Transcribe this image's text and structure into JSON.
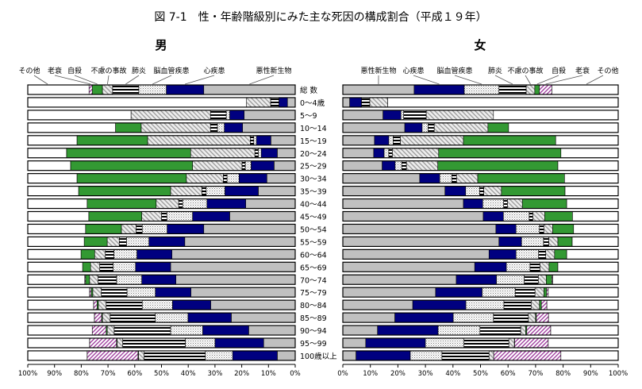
{
  "title": "図 7-1　性・年齢階級別にみた主な死因の構成割合（平成１９年）",
  "colors": {
    "悪性新生物": "#c0c0c0",
    "心疾患": "#000080",
    "脳血管疾患": "dots",
    "肺炎": "horizontal-stripes",
    "不慮の事故": "gray-diagonal-hatch",
    "自殺": "#339933",
    "老衰": "#993399",
    "その他": "#ffffff"
  },
  "chart_data": [
    {
      "type": "bar",
      "stacked": true,
      "orientation": "horizontal",
      "title": "男",
      "xlim": [
        100,
        0
      ],
      "xlabel": "",
      "tick_labels": [
        "100%",
        "90%",
        "80%",
        "70%",
        "60%",
        "50%",
        "40%",
        "30%",
        "20%",
        "10%",
        "0%"
      ],
      "legend": [
        "その他",
        "老衰",
        "自殺",
        "不慮の事故",
        "肺炎",
        "脳血管疾患",
        "心疾患",
        "悪性新生物"
      ],
      "categories": [
        "総 数",
        "0～4歳",
        "5～9",
        "10～14",
        "15～19",
        "20～24",
        "25～29",
        "30～34",
        "35～39",
        "40～44",
        "45～49",
        "50～54",
        "55～59",
        "60～64",
        "65～69",
        "70～74",
        "75～79",
        "80～84",
        "85～89",
        "90～94",
        "95～99",
        "100歳以上"
      ],
      "series": [
        {
          "name": "悪性新生物",
          "values": [
            34.2,
            2.9,
            19.1,
            19.7,
            9.1,
            6.7,
            7.9,
            10.6,
            13.8,
            18.5,
            24.5,
            34.2,
            41.3,
            46.1,
            46.6,
            44.6,
            39.0,
            31.6,
            23.9,
            17.4,
            11.8,
            6.7
          ]
        },
        {
          "name": "心疾患",
          "values": [
            14.0,
            3.2,
            5.4,
            6.8,
            5.4,
            6.0,
            8.6,
            10.4,
            12.5,
            14.5,
            13.9,
            13.7,
            13.4,
            13.1,
            13.1,
            12.8,
            13.3,
            14.3,
            16.2,
            17.2,
            18.2,
            16.7
          ]
        },
        {
          "name": "脳血管疾患",
          "values": [
            10.3,
            0,
            1.3,
            2.6,
            1.0,
            1.1,
            2.2,
            4.5,
            7.0,
            9.1,
            9.6,
            9.3,
            8.4,
            8.6,
            8.4,
            9.4,
            10.6,
            11.3,
            12.2,
            12.0,
            11.1,
            10.2
          ]
        },
        {
          "name": "肺炎",
          "values": [
            9.8,
            3.1,
            5.9,
            2.6,
            1.3,
            1.3,
            1.2,
            1.4,
            1.6,
            1.5,
            2.0,
            2.3,
            2.7,
            3.2,
            5.0,
            6.9,
            9.6,
            13.5,
            16.9,
            21.1,
            23.4,
            22.9
          ]
        },
        {
          "name": "不慮の事故",
          "values": [
            3.8,
            9.0,
            29.7,
            25.9,
            38.4,
            24.0,
            18.5,
            13.8,
            11.7,
            8.4,
            7.4,
            5.5,
            4.5,
            4.0,
            3.4,
            3.2,
            3.2,
            2.9,
            2.9,
            2.6,
            2.1,
            2.1
          ]
        },
        {
          "name": "自殺",
          "values": [
            3.8,
            0,
            0,
            9.6,
            26.4,
            46.4,
            45.6,
            40.9,
            34.4,
            25.8,
            19.8,
            13.4,
            8.6,
            5.1,
            3.0,
            1.5,
            0.6,
            0.5,
            0.3,
            0.4,
            0.2,
            0.2
          ]
        },
        {
          "name": "老衰",
          "values": [
            1.2,
            0,
            0,
            0,
            0,
            0,
            0,
            0,
            0,
            0,
            0,
            0,
            0,
            0,
            0,
            0.3,
            0.6,
            1.3,
            2.7,
            5.2,
            10.1,
            19.0
          ]
        },
        {
          "name": "その他",
          "values": [
            22.9,
            81.8,
            38.6,
            32.8,
            18.4,
            14.5,
            16.0,
            18.4,
            19.0,
            22.2,
            22.8,
            21.6,
            21.1,
            19.9,
            20.5,
            21.3,
            23.1,
            24.6,
            24.9,
            24.1,
            23.1,
            22.2
          ]
        }
      ]
    },
    {
      "type": "bar",
      "stacked": true,
      "orientation": "horizontal",
      "title": "女",
      "xlim": [
        0,
        100
      ],
      "xlabel": "",
      "tick_labels": [
        "0%",
        "10%",
        "20%",
        "30%",
        "40%",
        "50%",
        "60%",
        "70%",
        "80%",
        "90%",
        "100%"
      ],
      "legend": [
        "悪性新生物",
        "心疾患",
        "脳血管疾患",
        "肺炎",
        "不慮の事故",
        "自殺",
        "老衰",
        "その他"
      ],
      "categories": [
        "総 数",
        "0～4歳",
        "5～9",
        "10～14",
        "15～19",
        "20～24",
        "25～29",
        "30～34",
        "35～39",
        "40～44",
        "45～49",
        "50～54",
        "55～59",
        "60～64",
        "65～69",
        "70～74",
        "75～79",
        "80～84",
        "85～89",
        "90～94",
        "95～99",
        "100歳以上"
      ],
      "series": [
        {
          "name": "悪性新生物",
          "values": [
            25.9,
            2.5,
            14.6,
            22.5,
            11.5,
            11.2,
            14.3,
            27.9,
            37.1,
            43.8,
            51.0,
            55.6,
            56.7,
            53.1,
            47.9,
            41.2,
            33.7,
            25.4,
            18.9,
            12.6,
            8.3,
            4.8
          ]
        },
        {
          "name": "心疾患",
          "values": [
            18.2,
            4.3,
            6.5,
            6.3,
            5.2,
            3.8,
            4.7,
            7.3,
            7.5,
            7.0,
            7.3,
            7.3,
            8.2,
            9.8,
            11.5,
            14.6,
            16.9,
            19.3,
            21.2,
            22.0,
            21.7,
            19.7
          ]
        },
        {
          "name": "脳血管疾患",
          "values": [
            12.6,
            0,
            1.0,
            2.2,
            1.6,
            1.7,
            2.4,
            4.4,
            5.1,
            7.6,
            9.4,
            8.5,
            8.0,
            8.2,
            8.6,
            10.1,
            12.0,
            13.8,
            14.6,
            15.2,
            14.0,
            11.5
          ]
        },
        {
          "name": "肺炎",
          "values": [
            9.9,
            3.0,
            8.2,
            2.2,
            2.6,
            1.3,
            1.7,
            1.7,
            1.5,
            1.4,
            1.3,
            1.6,
            1.9,
            2.6,
            3.6,
            5.1,
            7.2,
            9.9,
            12.7,
            14.8,
            16.3,
            17.1
          ]
        },
        {
          "name": "不慮の事故",
          "values": [
            3.1,
            6.5,
            24.4,
            19.5,
            22.9,
            16.8,
            11.4,
            7.7,
            6.4,
            5.4,
            4.3,
            3.2,
            3.3,
            3.2,
            3.3,
            2.9,
            3.2,
            3.0,
            2.6,
            1.8,
            2.0,
            1.7
          ]
        },
        {
          "name": "自殺",
          "values": [
            1.7,
            0,
            0,
            7.5,
            33.5,
            44.4,
            43.6,
            31.5,
            23.1,
            16.1,
            10.1,
            7.6,
            5.2,
            4.4,
            3.2,
            2.0,
            1.0,
            0.7,
            0.3,
            0.4,
            0.1,
            0
          ]
        },
        {
          "name": "老衰",
          "values": [
            4.5,
            0,
            0,
            0,
            0,
            0,
            0,
            0,
            0,
            0,
            0,
            0,
            0,
            0,
            0,
            0.3,
            0.6,
            2.0,
            4.4,
            8.7,
            12.2,
            24.4
          ]
        },
        {
          "name": "その他",
          "values": [
            24.1,
            83.7,
            45.3,
            39.8,
            22.7,
            20.8,
            21.9,
            19.5,
            19.3,
            18.7,
            16.6,
            16.2,
            16.7,
            18.7,
            21.9,
            23.8,
            25.4,
            25.9,
            25.3,
            24.5,
            25.4,
            20.8
          ]
        }
      ]
    }
  ]
}
